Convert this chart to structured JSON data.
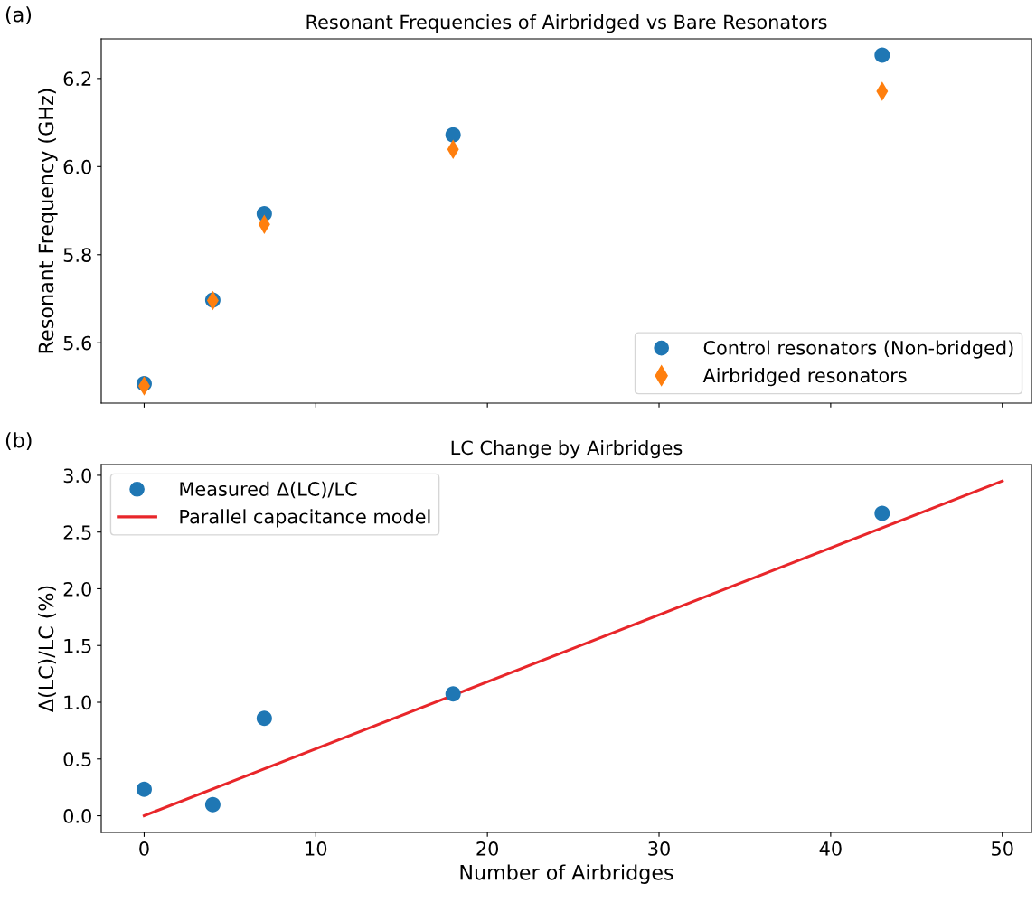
{
  "chart_data": [
    {
      "type": "scatter",
      "title": "Resonant Frequencies of Airbridged vs Bare Resonators",
      "ylabel": "Resonant Frequency (GHz)",
      "annotations": [
        "(a)"
      ],
      "x": [
        0,
        4,
        7,
        18,
        43
      ],
      "series": [
        {
          "name": "Control resonators (Non-bridged)",
          "color": "#1f77b4",
          "marker": "circle",
          "values": [
            5.507,
            5.697,
            5.893,
            6.072,
            6.253
          ]
        },
        {
          "name": "Airbridged resonators",
          "color": "#ff7f0e",
          "marker": "diamond",
          "values": [
            5.502,
            5.696,
            5.869,
            6.039,
            6.171
          ]
        }
      ],
      "xlim": [
        -2.5,
        51.7
      ],
      "xticks": [
        {
          "value": 0,
          "label": null
        },
        {
          "value": 10,
          "label": null
        },
        {
          "value": 20,
          "label": null
        },
        {
          "value": 30,
          "label": null
        },
        {
          "value": 40,
          "label": null
        },
        {
          "value": 50,
          "label": null
        }
      ],
      "ylim": [
        5.463,
        6.29
      ],
      "yticks": [
        5.6,
        5.8,
        {
          "value": 6,
          "label": "6.0"
        },
        6.2
      ],
      "tick_labels": "y",
      "legend": "bottom right",
      "grid": false
    },
    {
      "type": "scatter",
      "title": "LC Change by Airbridges",
      "xlabel": "Number of Airbridges",
      "ylabel": "Δ(LC)/LC (%)",
      "annotations": [
        "(b)"
      ],
      "series": [
        {
          "name": "Measured Δ(LC)/LC",
          "color": "#1f77b4",
          "marker": "circle",
          "x": [
            0,
            4,
            7,
            18,
            43
          ],
          "values": [
            0.233,
            0.098,
            0.858,
            1.073,
            2.665
          ]
        },
        {
          "name": "Parallel capacitance model",
          "type": "line",
          "color": "#e8262a",
          "marker": "none",
          "x": [
            0,
            50
          ],
          "values": [
            0.0,
            2.95
          ]
        }
      ],
      "xlim": [
        -2.5,
        51.7
      ],
      "xticks": [
        0,
        10,
        20,
        30,
        40,
        50
      ],
      "ylim": [
        -0.147,
        3.095
      ],
      "yticks": [
        {
          "value": 0,
          "label": "0.0"
        },
        0.5,
        {
          "value": 1,
          "label": "1.0"
        },
        1.5,
        {
          "value": 2,
          "label": "2.0"
        },
        2.5,
        {
          "value": 3,
          "label": "3.0"
        }
      ],
      "legend": "top left",
      "grid": false
    }
  ]
}
